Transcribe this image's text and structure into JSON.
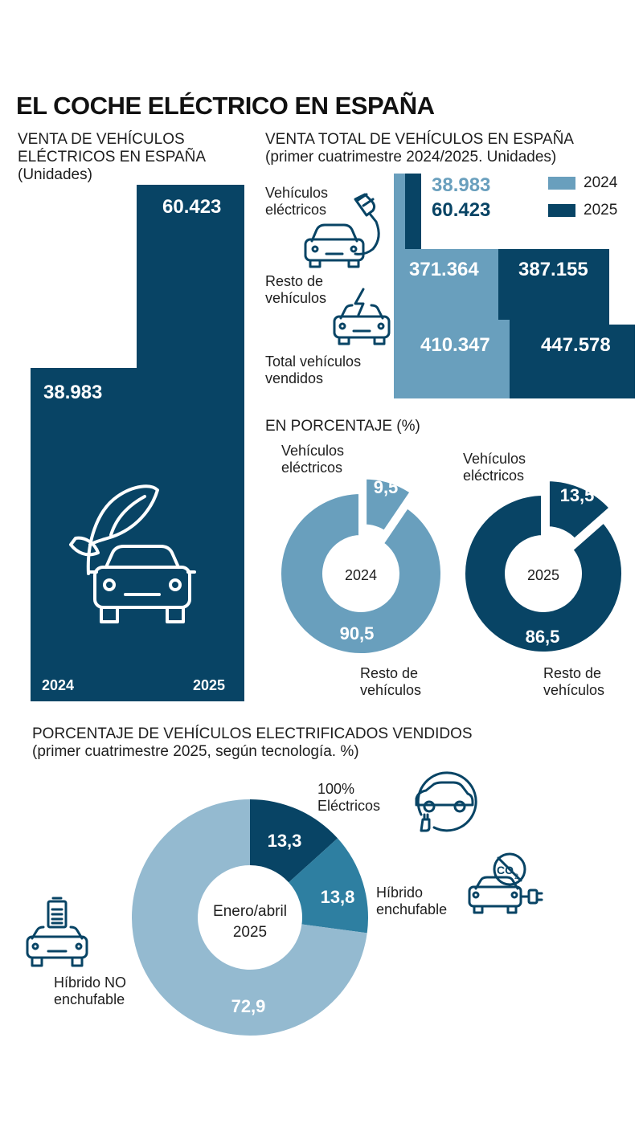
{
  "title": "EL COCHE ELÉCTRICO EN ESPAÑA",
  "colors": {
    "y2024": "#699fbd",
    "y2025": "#084465",
    "phev": "#2e7fa1",
    "hev": "#94bad0"
  },
  "left_chart": {
    "heading_line1": "VENTA DE VEHÍCULOS",
    "heading_line2": "ELÉCTRICOS EN ESPAÑA",
    "heading_line3": "(Unidades)",
    "label_2024": "2024",
    "label_2025": "2025",
    "value_2024": "38.983",
    "value_2025": "60.423",
    "icon": "leaf-car-icon"
  },
  "total_chart": {
    "heading_line1": "VENTA TOTAL DE VEHÍCULOS EN ESPAÑA",
    "heading_line2": "(primer cuatrimestre 2024/2025. Unidades)",
    "legend_2024": "2024",
    "legend_2025": "2025",
    "row_ev_label_1": "Vehículos",
    "row_ev_label_2": "eléctricos",
    "row_rest_label_1": "Resto de",
    "row_rest_label_2": "vehículos",
    "row_total_label_1": "Total vehículos",
    "row_total_label_2": "vendidos",
    "ev_2024": "38.983",
    "ev_2025": "60.423",
    "rest_2024": "371.364",
    "rest_2025": "387.155",
    "total_2024": "410.347",
    "total_2025": "447.578",
    "icons": [
      "plug-car-icon",
      "charging-car-icon"
    ]
  },
  "pct_charts": {
    "heading": "EN PORCENTAJE (%)",
    "ev_label_1": "Vehículos",
    "ev_label_2": "eléctricos",
    "rest_label_1": "Resto de",
    "rest_label_2": "vehículos",
    "d2024": {
      "center": "2024",
      "ev": "9,5",
      "rest": "90,5"
    },
    "d2025": {
      "center": "2025",
      "ev": "13,5",
      "rest": "86,5"
    }
  },
  "tech_chart": {
    "heading_line1": "PORCENTAJE DE VEHÍCULOS ELECTRIFICADOS VENDIDOS",
    "heading_line2": "(primer cuatrimestre 2025, según tecnología. %)",
    "center_line1": "Enero/abril",
    "center_line2": "2025",
    "bev_label_1": "100%",
    "bev_label_2": "Eléctricos",
    "phev_label_1": "Híbrido",
    "phev_label_2": "enchufable",
    "hev_label_1": "Híbrido NO",
    "hev_label_2": "enchufable",
    "bev_value": "13,3",
    "phev_value": "13,8",
    "hev_value": "72,9",
    "icons": [
      "ev-car-icon",
      "co2-car-icon",
      "battery-car-icon"
    ]
  },
  "chart_data": [
    {
      "type": "bar",
      "title": "VENTA DE VEHÍCULOS ELÉCTRICOS EN ESPAÑA",
      "ylabel": "(Unidades)",
      "categories": [
        "2024",
        "2025"
      ],
      "values": [
        38983,
        60423
      ]
    },
    {
      "type": "bar",
      "title": "VENTA TOTAL DE VEHÍCULOS EN ESPAÑA",
      "subtitle": "(primer cuatrimestre 2024/2025. Unidades)",
      "categories": [
        "Vehículos eléctricos",
        "Resto de vehículos",
        "Total vehículos vendidos"
      ],
      "series": [
        {
          "name": "2024",
          "values": [
            38983,
            371364,
            410347
          ]
        },
        {
          "name": "2025",
          "values": [
            60423,
            387155,
            447578
          ]
        }
      ]
    },
    {
      "type": "pie",
      "title": "EN PORCENTAJE (%)",
      "center": "2024",
      "categories": [
        "Vehículos eléctricos",
        "Resto de vehículos"
      ],
      "values": [
        9.5,
        90.5
      ]
    },
    {
      "type": "pie",
      "title": "EN PORCENTAJE (%)",
      "center": "2025",
      "categories": [
        "Vehículos eléctricos",
        "Resto de vehículos"
      ],
      "values": [
        13.5,
        86.5
      ]
    },
    {
      "type": "pie",
      "title": "PORCENTAJE DE VEHÍCULOS ELECTRIFICADOS VENDIDOS",
      "subtitle": "(primer cuatrimestre 2025, según tecnología. %)",
      "center": "Enero/abril 2025",
      "categories": [
        "100% Eléctricos",
        "Híbrido enchufable",
        "Híbrido NO enchufable"
      ],
      "values": [
        13.3,
        13.8,
        72.9
      ]
    }
  ]
}
